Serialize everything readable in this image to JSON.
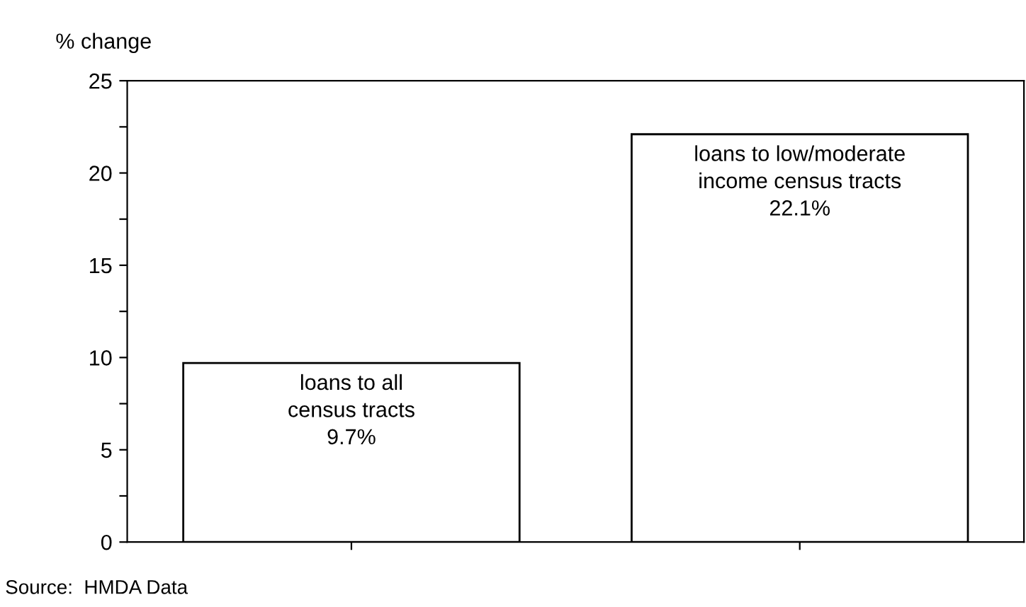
{
  "chart_data": {
    "type": "bar",
    "categories": [
      "loans to all\ncensus tracts",
      "loans to low/moderate\nincome census tracts"
    ],
    "values": [
      9.7,
      22.1
    ],
    "value_labels": [
      "9.7%",
      "22.1%"
    ],
    "color": "#ffffff",
    "ylabel": "% change",
    "ylim": [
      0,
      25
    ],
    "yticks": [
      0,
      {
        "value": 2.5,
        "label": null
      },
      5,
      {
        "value": 7.5,
        "label": null
      },
      10,
      {
        "value": 12.5,
        "label": null
      },
      15,
      {
        "value": 17.5,
        "label": null
      },
      20,
      {
        "value": 22.5,
        "label": null
      },
      25
    ],
    "grid": false,
    "legend": false,
    "annotations": [
      "Source:  HMDA Data"
    ]
  }
}
